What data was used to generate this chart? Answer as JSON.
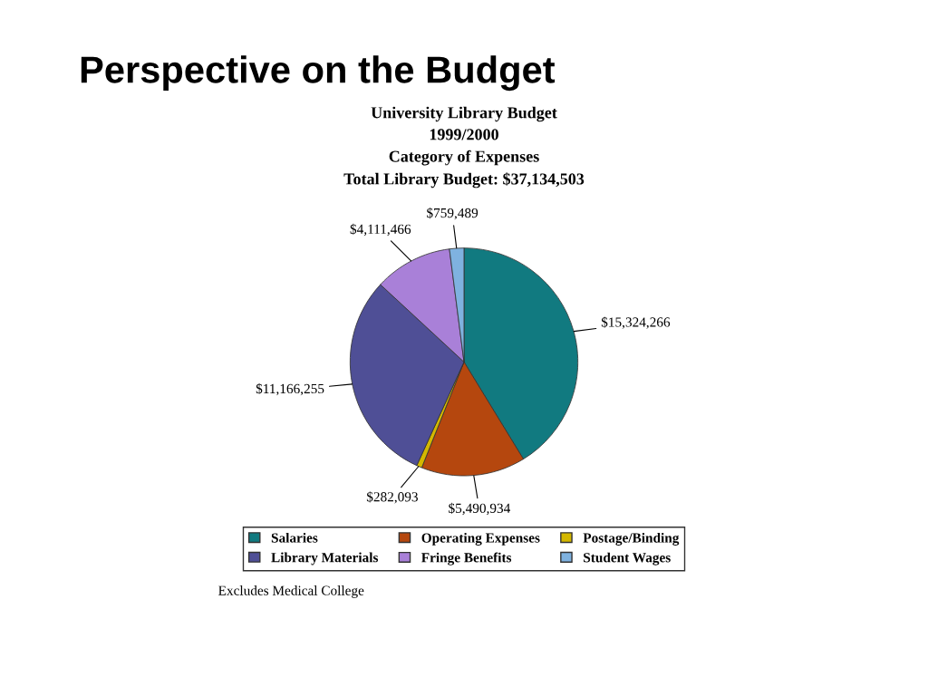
{
  "chart_data": {
    "type": "pie",
    "title": "Perspective on the Budget",
    "subtitle": "University Library Budget\n1999/2000\nCategory of Expenses\nTotal Library Budget: $37,134,503",
    "categories": [
      "Salaries",
      "Operating Expenses",
      "Postage/Binding",
      "Library Materials",
      "Fringe Benefits",
      "Student Wages"
    ],
    "values": [
      15324266,
      5490934,
      282093,
      11166255,
      4111466,
      759489
    ],
    "value_labels": [
      "$15,324,266",
      "$5,490,934",
      "$282,093",
      "$11,166,255",
      "$4,111,466",
      "$759,489"
    ],
    "colors": [
      "#117a80",
      "#b5470e",
      "#d4b800",
      "#4f4f96",
      "#a980d8",
      "#7fb2e0"
    ],
    "legend": "bottom",
    "annotations": [
      "Excludes Medical College"
    ]
  }
}
